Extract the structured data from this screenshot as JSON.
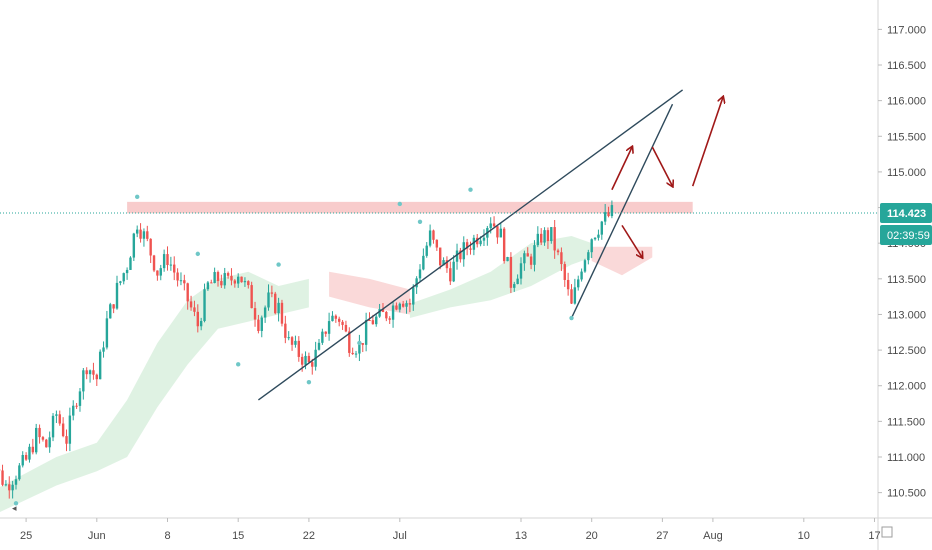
{
  "chart_data": {
    "type": "candlestick",
    "instrument_price_axis": {
      "ticks": [
        "117.000",
        "116.500",
        "116.000",
        "115.500",
        "115.000",
        "114.500",
        "114.000",
        "113.500",
        "113.000",
        "112.500",
        "112.000",
        "111.500",
        "111.000",
        "110.500"
      ],
      "ylim": [
        110.2,
        117.3
      ]
    },
    "x_axis": {
      "ticks": [
        "25",
        "Jun",
        "8",
        "15",
        "22",
        "Jul",
        "13",
        "20",
        "27",
        "Aug",
        "10",
        "17"
      ],
      "tick_dates": [
        "2020-05-25",
        "2020-06-01",
        "2020-06-08",
        "2020-06-15",
        "2020-06-22",
        "2020-07-01",
        "2020-07-13",
        "2020-07-20",
        "2020-07-27",
        "2020-08-01",
        "2020-08-10",
        "2020-08-17"
      ]
    },
    "last_price": {
      "value": 114.423,
      "label": "114.423",
      "countdown": "02:39:59",
      "color": "#26a69a"
    },
    "close_path": [
      [
        "2020-05-21",
        111.55
      ],
      [
        "2020-05-22",
        110.85
      ],
      [
        "2020-05-23",
        110.6
      ],
      [
        "2020-05-25",
        110.95
      ],
      [
        "2020-05-26",
        111.3
      ],
      [
        "2020-05-27",
        111.15
      ],
      [
        "2020-05-28",
        111.6
      ],
      [
        "2020-05-29",
        111.25
      ],
      [
        "2020-05-30",
        111.85
      ],
      [
        "2020-05-31",
        112.3
      ],
      [
        "2020-06-01",
        112.1
      ],
      [
        "2020-06-02",
        112.9
      ],
      [
        "2020-06-03",
        113.35
      ],
      [
        "2020-06-04",
        113.7
      ],
      [
        "2020-06-05",
        114.3
      ],
      [
        "2020-06-06",
        114.0
      ],
      [
        "2020-06-07",
        113.6
      ],
      [
        "2020-06-08",
        113.8
      ],
      [
        "2020-06-09",
        113.5
      ],
      [
        "2020-06-10",
        113.2
      ],
      [
        "2020-06-11",
        112.85
      ],
      [
        "2020-06-12",
        113.4
      ],
      [
        "2020-06-13",
        113.5
      ],
      [
        "2020-06-14",
        113.45
      ],
      [
        "2020-06-15",
        113.6
      ],
      [
        "2020-06-16",
        113.3
      ],
      [
        "2020-06-17",
        112.9
      ],
      [
        "2020-06-18",
        113.2
      ],
      [
        "2020-06-19",
        113.1
      ],
      [
        "2020-06-20",
        112.6
      ],
      [
        "2020-06-21",
        112.45
      ],
      [
        "2020-06-22",
        112.3
      ],
      [
        "2020-06-23",
        112.5
      ],
      [
        "2020-06-24",
        112.95
      ],
      [
        "2020-06-25",
        112.95
      ],
      [
        "2020-06-26",
        112.6
      ],
      [
        "2020-06-27",
        112.55
      ],
      [
        "2020-06-28",
        112.9
      ],
      [
        "2020-06-29",
        112.95
      ],
      [
        "2020-06-30",
        113.05
      ],
      [
        "2020-07-01",
        113.25
      ],
      [
        "2020-07-02",
        113.15
      ],
      [
        "2020-07-03",
        113.7
      ],
      [
        "2020-07-04",
        114.1
      ],
      [
        "2020-07-05",
        113.75
      ],
      [
        "2020-07-06",
        113.6
      ],
      [
        "2020-07-07",
        113.85
      ],
      [
        "2020-07-08",
        114.0
      ],
      [
        "2020-07-09",
        114.15
      ],
      [
        "2020-07-10",
        114.35
      ],
      [
        "2020-07-11",
        114.1
      ],
      [
        "2020-07-12",
        113.45
      ],
      [
        "2020-07-13",
        113.7
      ],
      [
        "2020-07-14",
        113.8
      ],
      [
        "2020-07-15",
        114.1
      ],
      [
        "2020-07-16",
        114.1
      ],
      [
        "2020-07-17",
        113.65
      ],
      [
        "2020-07-18",
        113.1
      ],
      [
        "2020-07-19",
        113.7
      ],
      [
        "2020-07-20",
        114.1
      ],
      [
        "2020-07-21",
        114.3
      ],
      [
        "2020-07-22",
        114.42
      ]
    ],
    "annotations": {
      "resistance_zone": {
        "y_from": 114.42,
        "y_to": 114.58,
        "x_from": "2020-06-04",
        "x_to": "2020-07-30",
        "color": "#f7c6c6"
      },
      "rising_wedge_lower": {
        "x1": "2020-06-17",
        "y1": 111.8,
        "x2": "2020-07-29",
        "y2": 116.15
      },
      "rising_wedge_upper": {
        "x1": "2020-07-18",
        "y1": 112.95,
        "x2": "2020-07-28",
        "y2": 115.95
      },
      "arrows": [
        {
          "x1": "2020-07-22",
          "y1": 114.75,
          "x2": "2020-07-24",
          "y2": 115.35,
          "color": "#a01818"
        },
        {
          "x1": "2020-07-26",
          "y1": 115.35,
          "x2": "2020-07-28",
          "y2": 114.8,
          "color": "#a01818"
        },
        {
          "x1": "2020-07-30",
          "y1": 114.8,
          "x2": "2020-08-02",
          "y2": 116.05,
          "color": "#a01818"
        },
        {
          "x1": "2020-07-23",
          "y1": 114.25,
          "x2": "2020-07-25",
          "y2": 113.8,
          "color": "#a01818"
        }
      ]
    },
    "ichimoku_cloud": {
      "bullish_color": "#d9f0de",
      "bearish_color": "#f9d5d5"
    },
    "colors": {
      "up_candle": "#26a69a",
      "down_candle": "#ef5350",
      "trend_line": "#2e4a5c",
      "axis_text": "#4a4a4a"
    }
  }
}
